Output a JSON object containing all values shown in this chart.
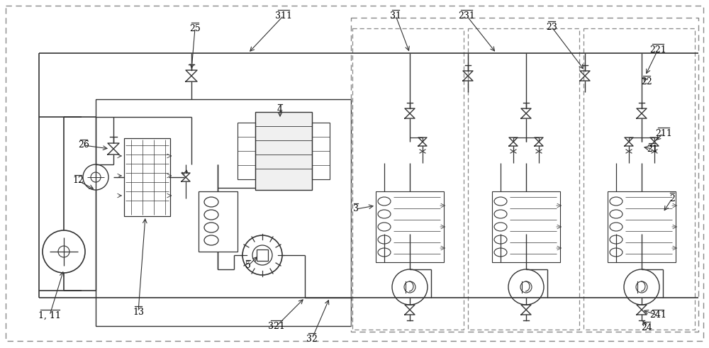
{
  "bg_color": "#ffffff",
  "line_color": "#333333",
  "dashed_color": "#888888",
  "label_color": "#000000",
  "fig_width": 10.0,
  "fig_height": 4.91
}
